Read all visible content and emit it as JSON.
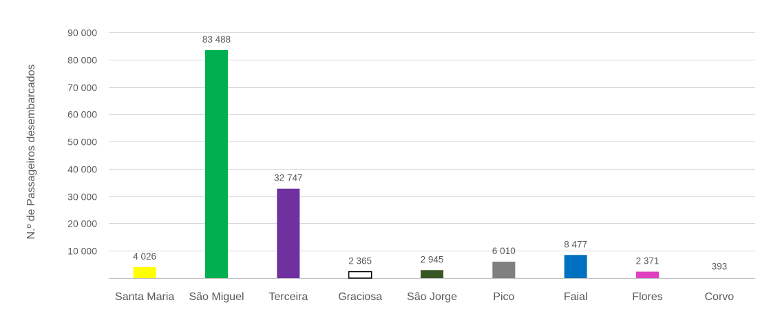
{
  "chart_data": {
    "type": "bar",
    "title": "",
    "xlabel": "",
    "ylabel": "N.º de Passageiros desembarcados",
    "ylim": [
      0,
      90000
    ],
    "yticks": [
      10000,
      20000,
      30000,
      40000,
      50000,
      60000,
      70000,
      80000,
      90000
    ],
    "ytick_labels": [
      "10 000",
      "20 000",
      "30 000",
      "40 000",
      "50 000",
      "60 000",
      "70 000",
      "80 000",
      "90 000"
    ],
    "grid": true,
    "categories": [
      "Santa Maria",
      "São Miguel",
      "Terceira",
      "Graciosa",
      "São Jorge",
      "Pico",
      "Faial",
      "Flores",
      "Corvo"
    ],
    "values": [
      4026,
      83488,
      32747,
      2365,
      2945,
      6010,
      8477,
      2371,
      393
    ],
    "value_labels": [
      "4 026",
      "83 488",
      "32 747",
      "2 365",
      "2 945",
      "6 010",
      "8 477",
      "2 371",
      "393"
    ],
    "colors": [
      "#FFFF00",
      "#00B050",
      "#7030A0",
      "#FFFFFF",
      "#375623",
      "#808080",
      "#0070C0",
      "#E040C0",
      "#FFFFFF"
    ],
    "outline_colors": [
      "none",
      "none",
      "none",
      "#000000",
      "none",
      "none",
      "none",
      "none",
      "none"
    ]
  }
}
